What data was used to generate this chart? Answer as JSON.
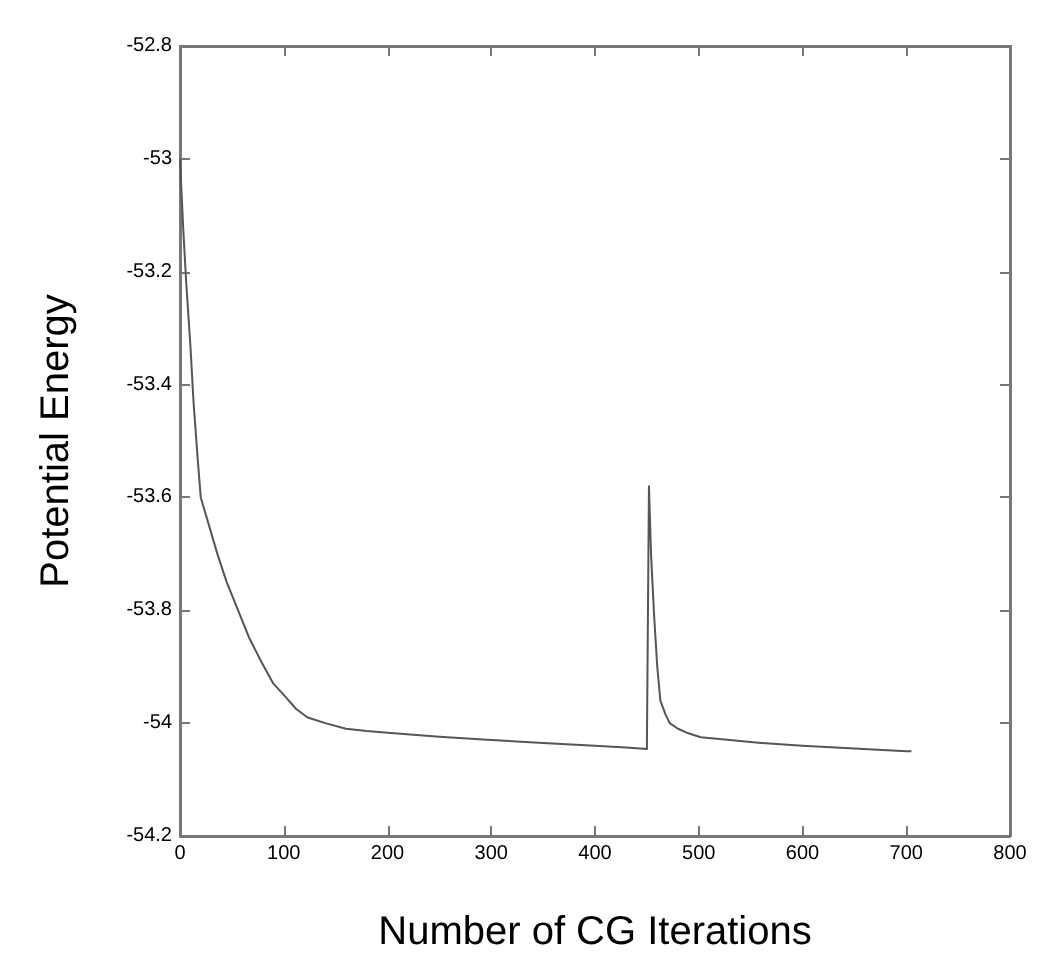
{
  "chart_data": {
    "type": "line",
    "xlabel": "Number of CG Iterations",
    "ylabel": "Potential Energy",
    "xlim": [
      0,
      800
    ],
    "xticks": [
      0,
      100,
      200,
      300,
      400,
      500,
      600,
      700,
      800
    ],
    "ylim": [
      -54.2,
      -52.8
    ],
    "yticks": [
      -54.2,
      -54,
      -53.8,
      -53.6,
      -53.4,
      -53.2,
      -53,
      -52.8
    ],
    "grid": false,
    "marker": "none",
    "line_style": "solid",
    "series": [
      {
        "color": "#555555",
        "x": [
          0,
          3,
          6,
          10,
          13,
          17,
          20,
          28,
          36,
          45,
          56,
          67,
          78,
          90,
          100,
          112,
          123,
          140,
          160,
          180,
          200,
          250,
          300,
          350,
          400,
          430,
          450,
          452,
          454,
          457,
          460,
          463,
          468,
          472,
          480,
          490,
          502,
          530,
          560,
          600,
          650,
          700,
          705
        ],
        "values": [
          -53.0,
          -53.12,
          -53.22,
          -53.33,
          -53.43,
          -53.53,
          -53.6,
          -53.65,
          -53.7,
          -53.75,
          -53.8,
          -53.85,
          -53.89,
          -53.93,
          -53.95,
          -53.975,
          -53.99,
          -54.0,
          -54.01,
          -54.014,
          -54.017,
          -54.024,
          -54.03,
          -54.035,
          -54.04,
          -54.043,
          -54.046,
          -53.58,
          -53.7,
          -53.81,
          -53.9,
          -53.96,
          -53.985,
          -54.0,
          -54.01,
          -54.018,
          -54.025,
          -54.03,
          -54.035,
          -54.04,
          -54.045,
          -54.05,
          -54.05
        ]
      }
    ]
  }
}
